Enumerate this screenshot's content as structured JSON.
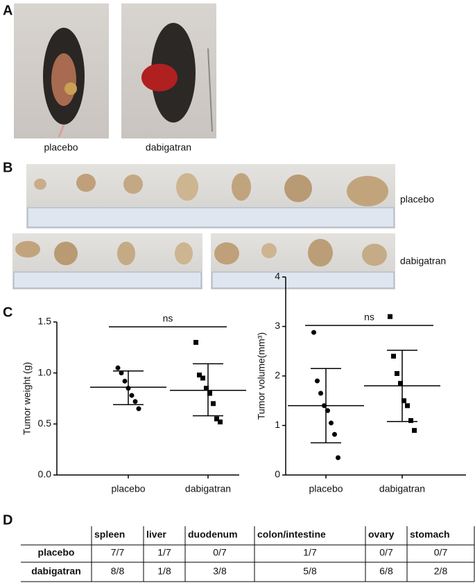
{
  "panel_labels": [
    "A",
    "B",
    "C",
    "D"
  ],
  "photos_a": {
    "labels": [
      "placebo",
      "dabigatran"
    ]
  },
  "photos_b": {
    "labels": [
      "placebo",
      "dabigatran"
    ]
  },
  "chart_data": [
    {
      "type": "dot_plot",
      "y_label": "Tumor weight (g)",
      "categories": [
        "placebo",
        "dabigatran"
      ],
      "markers": [
        "circle",
        "square"
      ],
      "color": "#000000",
      "points": [
        [
          1.05,
          1.0,
          0.92,
          0.85,
          0.78,
          0.72,
          0.65
        ],
        [
          1.3,
          0.98,
          0.95,
          0.85,
          0.8,
          0.7,
          0.55,
          0.52
        ]
      ],
      "error_bars": [
        {
          "mean": 0.86,
          "low": 0.69,
          "high": 1.02
        },
        {
          "mean": 0.83,
          "low": 0.58,
          "high": 1.09
        }
      ],
      "annotation": "ns",
      "ylim": [
        0,
        1.5
      ],
      "yticks": [
        {
          "value": 0,
          "label": "0.0"
        },
        0.5,
        {
          "value": 1,
          "label": "1.0"
        },
        1.5
      ]
    },
    {
      "type": "dot_plot",
      "y_label": "Tumor volume(mm³)",
      "categories": [
        "placebo",
        "dabigatran"
      ],
      "markers": [
        "circle",
        "square"
      ],
      "color": "#000000",
      "points": [
        [
          2.88,
          1.9,
          1.65,
          1.4,
          1.3,
          1.05,
          0.82,
          0.35
        ],
        [
          3.2,
          2.4,
          2.05,
          1.85,
          1.5,
          1.4,
          1.1,
          0.9
        ]
      ],
      "error_bars": [
        {
          "mean": 1.4,
          "low": 0.65,
          "high": 2.15
        },
        {
          "mean": 1.8,
          "low": 1.08,
          "high": 2.52
        }
      ],
      "annotation": "ns",
      "ylim": [
        0,
        4
      ],
      "yticks": [
        0,
        1,
        2,
        3,
        4
      ]
    }
  ],
  "table": {
    "columns": [
      "spleen",
      "liver",
      "duodenum",
      "colon/intestine",
      "ovary",
      "stomach"
    ],
    "rows": [
      {
        "label": "placebo",
        "cells": [
          "7/7",
          "1/7",
          "0/7",
          "1/7",
          "0/7",
          "0/7"
        ]
      },
      {
        "label": "dabigatran",
        "cells": [
          "8/8",
          "1/8",
          "3/8",
          "5/8",
          "6/8",
          "2/8"
        ]
      }
    ]
  }
}
